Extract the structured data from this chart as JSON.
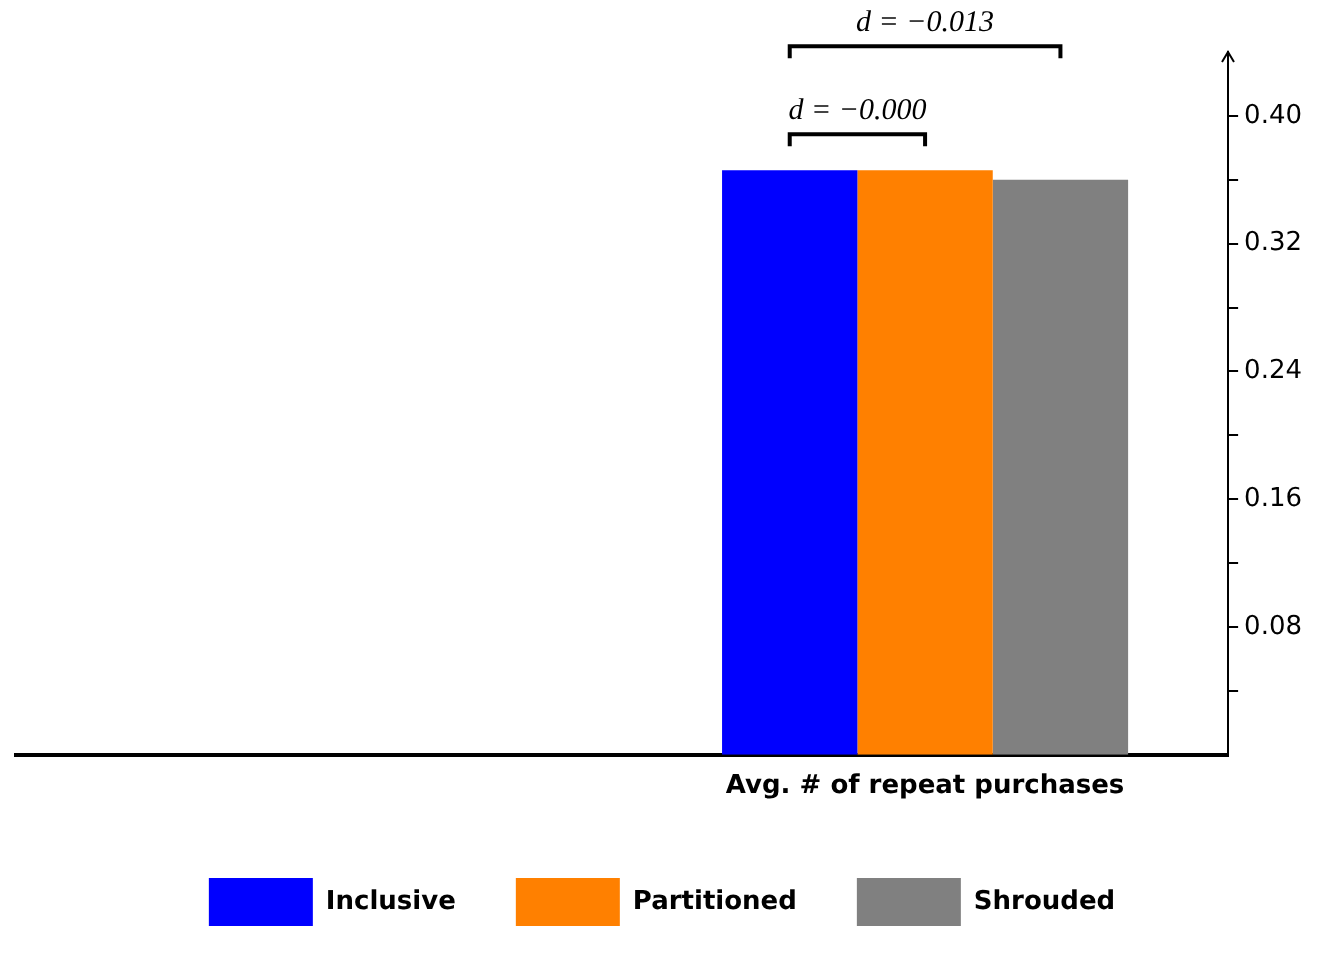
{
  "chart_data": {
    "type": "bar",
    "categories": [
      null,
      "Avg. # of repeat purchases"
    ],
    "series": [
      {
        "name": "Inclusive",
        "color": "#0000ff",
        "values": [
          null,
          0.366
        ]
      },
      {
        "name": "Partitioned",
        "color": "#ff8000",
        "values": [
          null,
          0.366
        ]
      },
      {
        "name": "Shrouded",
        "color": "#808080",
        "values": [
          null,
          0.36
        ]
      }
    ],
    "ylim": [
      0,
      0.44
    ],
    "yticks": [
      {
        "value": 0.04,
        "label": null
      },
      {
        "value": 0.08,
        "label": "0.08"
      },
      {
        "value": 0.12,
        "label": null
      },
      {
        "value": 0.16,
        "label": "0.16"
      },
      {
        "value": 0.2,
        "label": null
      },
      {
        "value": 0.24,
        "label": "0.24"
      },
      {
        "value": 0.28,
        "label": null
      },
      {
        "value": 0.32,
        "label": "0.32"
      },
      {
        "value": 0.36,
        "label": null
      },
      {
        "value": 0.4,
        "label": "0.40"
      }
    ],
    "annotations": [
      "d = −0.000",
      "d = −0.013"
    ],
    "grid": false,
    "legend": "bottom"
  }
}
